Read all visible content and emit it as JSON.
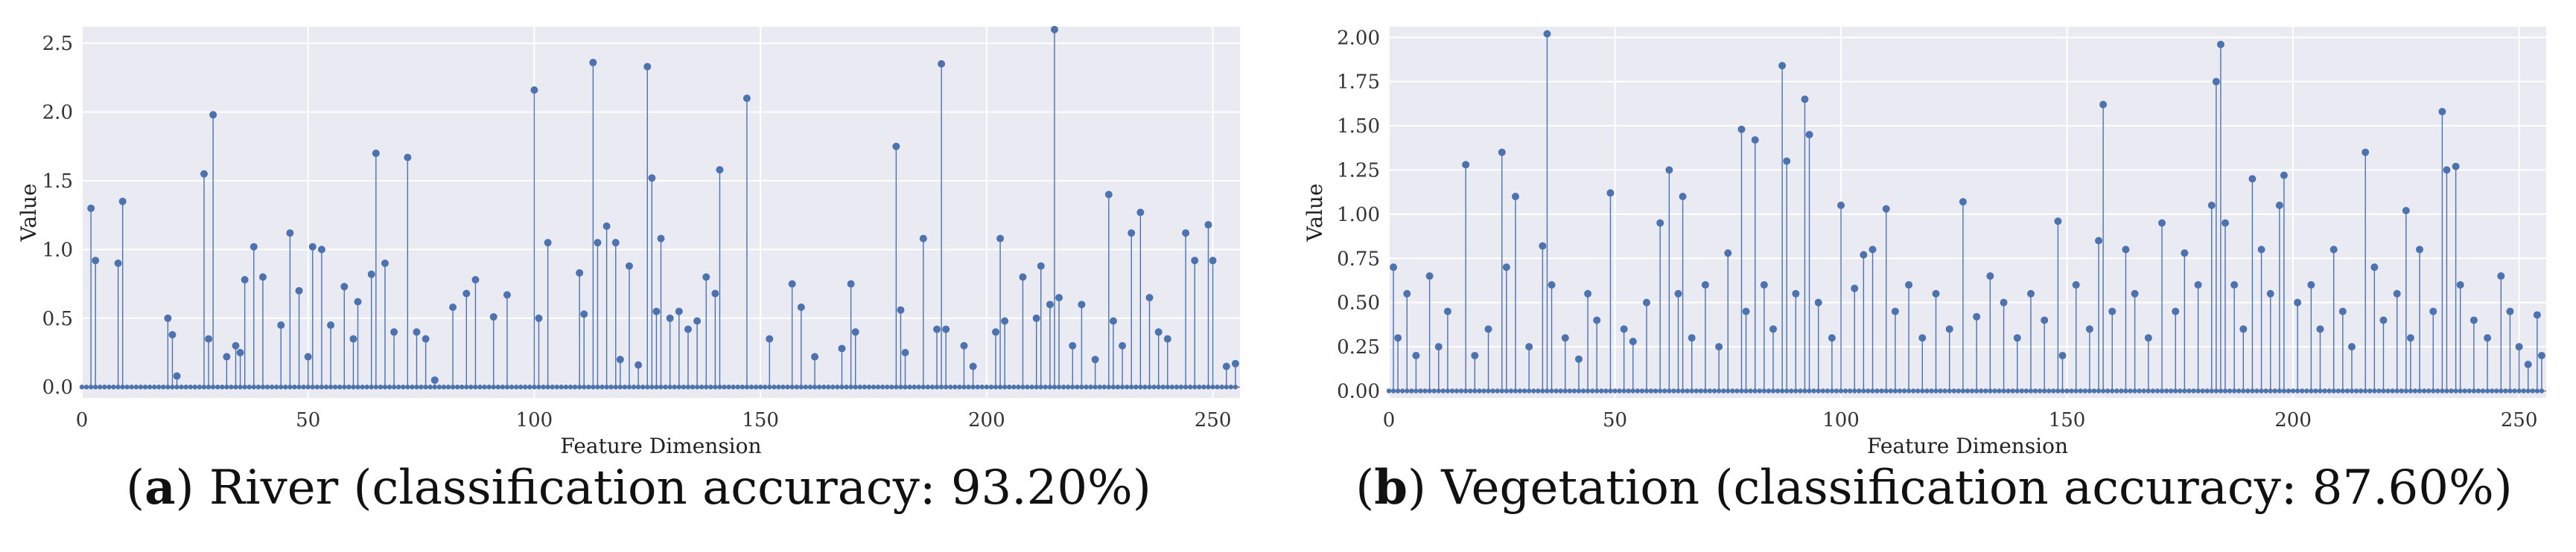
{
  "colors": {
    "marker": "#4C72B0",
    "background": "#EAEAF2",
    "grid": "#FFFFFF",
    "baseline": "#C44E52"
  },
  "chart_data": [
    {
      "type": "stem",
      "caption_label": "a",
      "caption_text": ") River (classification accuracy: 93.20%)",
      "xlabel": "Feature Dimension",
      "ylabel": "Value",
      "xlim": [
        0,
        256
      ],
      "ylim": [
        -0.08,
        2.62
      ],
      "xticks": [
        "0",
        "50",
        "100",
        "150",
        "200",
        "250"
      ],
      "yticks": [
        "0.0",
        "0.5",
        "1.0",
        "1.5",
        "2.0",
        "2.5"
      ],
      "ytick_values": [
        0.0,
        0.5,
        1.0,
        1.5,
        2.0,
        2.5
      ],
      "points": [
        [
          2,
          1.3
        ],
        [
          3,
          0.92
        ],
        [
          8,
          0.9
        ],
        [
          9,
          1.35
        ],
        [
          19,
          0.5
        ],
        [
          20,
          0.38
        ],
        [
          21,
          0.08
        ],
        [
          27,
          1.55
        ],
        [
          28,
          0.35
        ],
        [
          29,
          1.98
        ],
        [
          32,
          0.22
        ],
        [
          34,
          0.3
        ],
        [
          35,
          0.25
        ],
        [
          36,
          0.78
        ],
        [
          38,
          1.02
        ],
        [
          40,
          0.8
        ],
        [
          44,
          0.45
        ],
        [
          46,
          1.12
        ],
        [
          48,
          0.7
        ],
        [
          50,
          0.22
        ],
        [
          51,
          1.02
        ],
        [
          53,
          1.0
        ],
        [
          55,
          0.45
        ],
        [
          58,
          0.73
        ],
        [
          60,
          0.35
        ],
        [
          61,
          0.62
        ],
        [
          64,
          0.82
        ],
        [
          65,
          1.7
        ],
        [
          67,
          0.9
        ],
        [
          69,
          0.4
        ],
        [
          72,
          1.67
        ],
        [
          74,
          0.4
        ],
        [
          76,
          0.35
        ],
        [
          78,
          0.05
        ],
        [
          82,
          0.58
        ],
        [
          85,
          0.68
        ],
        [
          87,
          0.78
        ],
        [
          91,
          0.51
        ],
        [
          94,
          0.67
        ],
        [
          100,
          2.16
        ],
        [
          101,
          0.5
        ],
        [
          103,
          1.05
        ],
        [
          110,
          0.83
        ],
        [
          111,
          0.53
        ],
        [
          113,
          2.36
        ],
        [
          114,
          1.05
        ],
        [
          116,
          1.17
        ],
        [
          118,
          1.05
        ],
        [
          119,
          0.2
        ],
        [
          121,
          0.88
        ],
        [
          123,
          0.16
        ],
        [
          125,
          2.33
        ],
        [
          126,
          1.52
        ],
        [
          127,
          0.55
        ],
        [
          128,
          1.08
        ],
        [
          130,
          0.5
        ],
        [
          132,
          0.55
        ],
        [
          134,
          0.42
        ],
        [
          136,
          0.48
        ],
        [
          138,
          0.8
        ],
        [
          140,
          0.68
        ],
        [
          141,
          1.58
        ],
        [
          147,
          2.1
        ],
        [
          152,
          0.35
        ],
        [
          157,
          0.75
        ],
        [
          159,
          0.58
        ],
        [
          162,
          0.22
        ],
        [
          168,
          0.28
        ],
        [
          170,
          0.75
        ],
        [
          171,
          0.4
        ],
        [
          180,
          1.75
        ],
        [
          181,
          0.56
        ],
        [
          182,
          0.25
        ],
        [
          186,
          1.08
        ],
        [
          189,
          0.42
        ],
        [
          190,
          2.35
        ],
        [
          191,
          0.42
        ],
        [
          195,
          0.3
        ],
        [
          197,
          0.15
        ],
        [
          202,
          0.4
        ],
        [
          203,
          1.08
        ],
        [
          204,
          0.48
        ],
        [
          208,
          0.8
        ],
        [
          211,
          0.5
        ],
        [
          212,
          0.88
        ],
        [
          214,
          0.6
        ],
        [
          215,
          2.6
        ],
        [
          216,
          0.65
        ],
        [
          219,
          0.3
        ],
        [
          221,
          0.6
        ],
        [
          224,
          0.2
        ],
        [
          227,
          1.4
        ],
        [
          228,
          0.48
        ],
        [
          230,
          0.3
        ],
        [
          232,
          1.12
        ],
        [
          234,
          1.27
        ],
        [
          236,
          0.65
        ],
        [
          238,
          0.4
        ],
        [
          240,
          0.35
        ],
        [
          244,
          1.12
        ],
        [
          246,
          0.92
        ],
        [
          249,
          1.18
        ],
        [
          250,
          0.92
        ],
        [
          253,
          0.15
        ],
        [
          255,
          0.17
        ]
      ]
    },
    {
      "type": "stem",
      "caption_label": "b",
      "caption_text": ") Vegetation (classification accuracy: 87.60%)",
      "xlabel": "Feature Dimension",
      "ylabel": "Value",
      "xlim": [
        0,
        256
      ],
      "ylim": [
        -0.04,
        2.06
      ],
      "xticks": [
        "0",
        "50",
        "100",
        "150",
        "200",
        "250"
      ],
      "yticks": [
        "0.00",
        "0.25",
        "0.50",
        "0.75",
        "1.00",
        "1.25",
        "1.50",
        "1.75",
        "2.00"
      ],
      "ytick_values": [
        0.0,
        0.25,
        0.5,
        0.75,
        1.0,
        1.25,
        1.5,
        1.75,
        2.0
      ],
      "points": [
        [
          1,
          0.7
        ],
        [
          2,
          0.3
        ],
        [
          4,
          0.55
        ],
        [
          6,
          0.2
        ],
        [
          9,
          0.65
        ],
        [
          11,
          0.25
        ],
        [
          13,
          0.45
        ],
        [
          17,
          1.28
        ],
        [
          19,
          0.2
        ],
        [
          22,
          0.35
        ],
        [
          25,
          1.35
        ],
        [
          26,
          0.7
        ],
        [
          28,
          1.1
        ],
        [
          31,
          0.25
        ],
        [
          34,
          0.82
        ],
        [
          35,
          2.02
        ],
        [
          36,
          0.6
        ],
        [
          39,
          0.3
        ],
        [
          42,
          0.18
        ],
        [
          44,
          0.55
        ],
        [
          46,
          0.4
        ],
        [
          49,
          1.12
        ],
        [
          52,
          0.35
        ],
        [
          54,
          0.28
        ],
        [
          57,
          0.5
        ],
        [
          60,
          0.95
        ],
        [
          62,
          1.25
        ],
        [
          64,
          0.55
        ],
        [
          65,
          1.1
        ],
        [
          67,
          0.3
        ],
        [
          70,
          0.6
        ],
        [
          73,
          0.25
        ],
        [
          75,
          0.78
        ],
        [
          78,
          1.48
        ],
        [
          79,
          0.45
        ],
        [
          81,
          1.42
        ],
        [
          83,
          0.6
        ],
        [
          85,
          0.35
        ],
        [
          87,
          1.84
        ],
        [
          88,
          1.3
        ],
        [
          90,
          0.55
        ],
        [
          92,
          1.65
        ],
        [
          93,
          1.45
        ],
        [
          95,
          0.5
        ],
        [
          98,
          0.3
        ],
        [
          100,
          1.05
        ],
        [
          103,
          0.58
        ],
        [
          105,
          0.77
        ],
        [
          107,
          0.8
        ],
        [
          110,
          1.03
        ],
        [
          112,
          0.45
        ],
        [
          115,
          0.6
        ],
        [
          118,
          0.3
        ],
        [
          121,
          0.55
        ],
        [
          124,
          0.35
        ],
        [
          127,
          1.07
        ],
        [
          130,
          0.42
        ],
        [
          133,
          0.65
        ],
        [
          136,
          0.5
        ],
        [
          139,
          0.3
        ],
        [
          142,
          0.55
        ],
        [
          145,
          0.4
        ],
        [
          148,
          0.96
        ],
        [
          149,
          0.2
        ],
        [
          152,
          0.6
        ],
        [
          155,
          0.35
        ],
        [
          157,
          0.85
        ],
        [
          158,
          1.62
        ],
        [
          160,
          0.45
        ],
        [
          163,
          0.8
        ],
        [
          165,
          0.55
        ],
        [
          168,
          0.3
        ],
        [
          171,
          0.95
        ],
        [
          174,
          0.45
        ],
        [
          176,
          0.78
        ],
        [
          179,
          0.6
        ],
        [
          182,
          1.05
        ],
        [
          183,
          1.75
        ],
        [
          184,
          1.96
        ],
        [
          185,
          0.95
        ],
        [
          187,
          0.6
        ],
        [
          189,
          0.35
        ],
        [
          191,
          1.2
        ],
        [
          193,
          0.8
        ],
        [
          195,
          0.55
        ],
        [
          197,
          1.05
        ],
        [
          198,
          1.22
        ],
        [
          201,
          0.5
        ],
        [
          204,
          0.6
        ],
        [
          206,
          0.35
        ],
        [
          209,
          0.8
        ],
        [
          211,
          0.45
        ],
        [
          213,
          0.25
        ],
        [
          216,
          1.35
        ],
        [
          218,
          0.7
        ],
        [
          220,
          0.4
        ],
        [
          223,
          0.55
        ],
        [
          225,
          1.02
        ],
        [
          226,
          0.3
        ],
        [
          228,
          0.8
        ],
        [
          231,
          0.45
        ],
        [
          233,
          1.58
        ],
        [
          234,
          1.25
        ],
        [
          236,
          1.27
        ],
        [
          237,
          0.6
        ],
        [
          240,
          0.4
        ],
        [
          243,
          0.3
        ],
        [
          246,
          0.65
        ],
        [
          248,
          0.45
        ],
        [
          250,
          0.25
        ],
        [
          252,
          0.15
        ],
        [
          254,
          0.43
        ],
        [
          255,
          0.2
        ]
      ]
    }
  ]
}
